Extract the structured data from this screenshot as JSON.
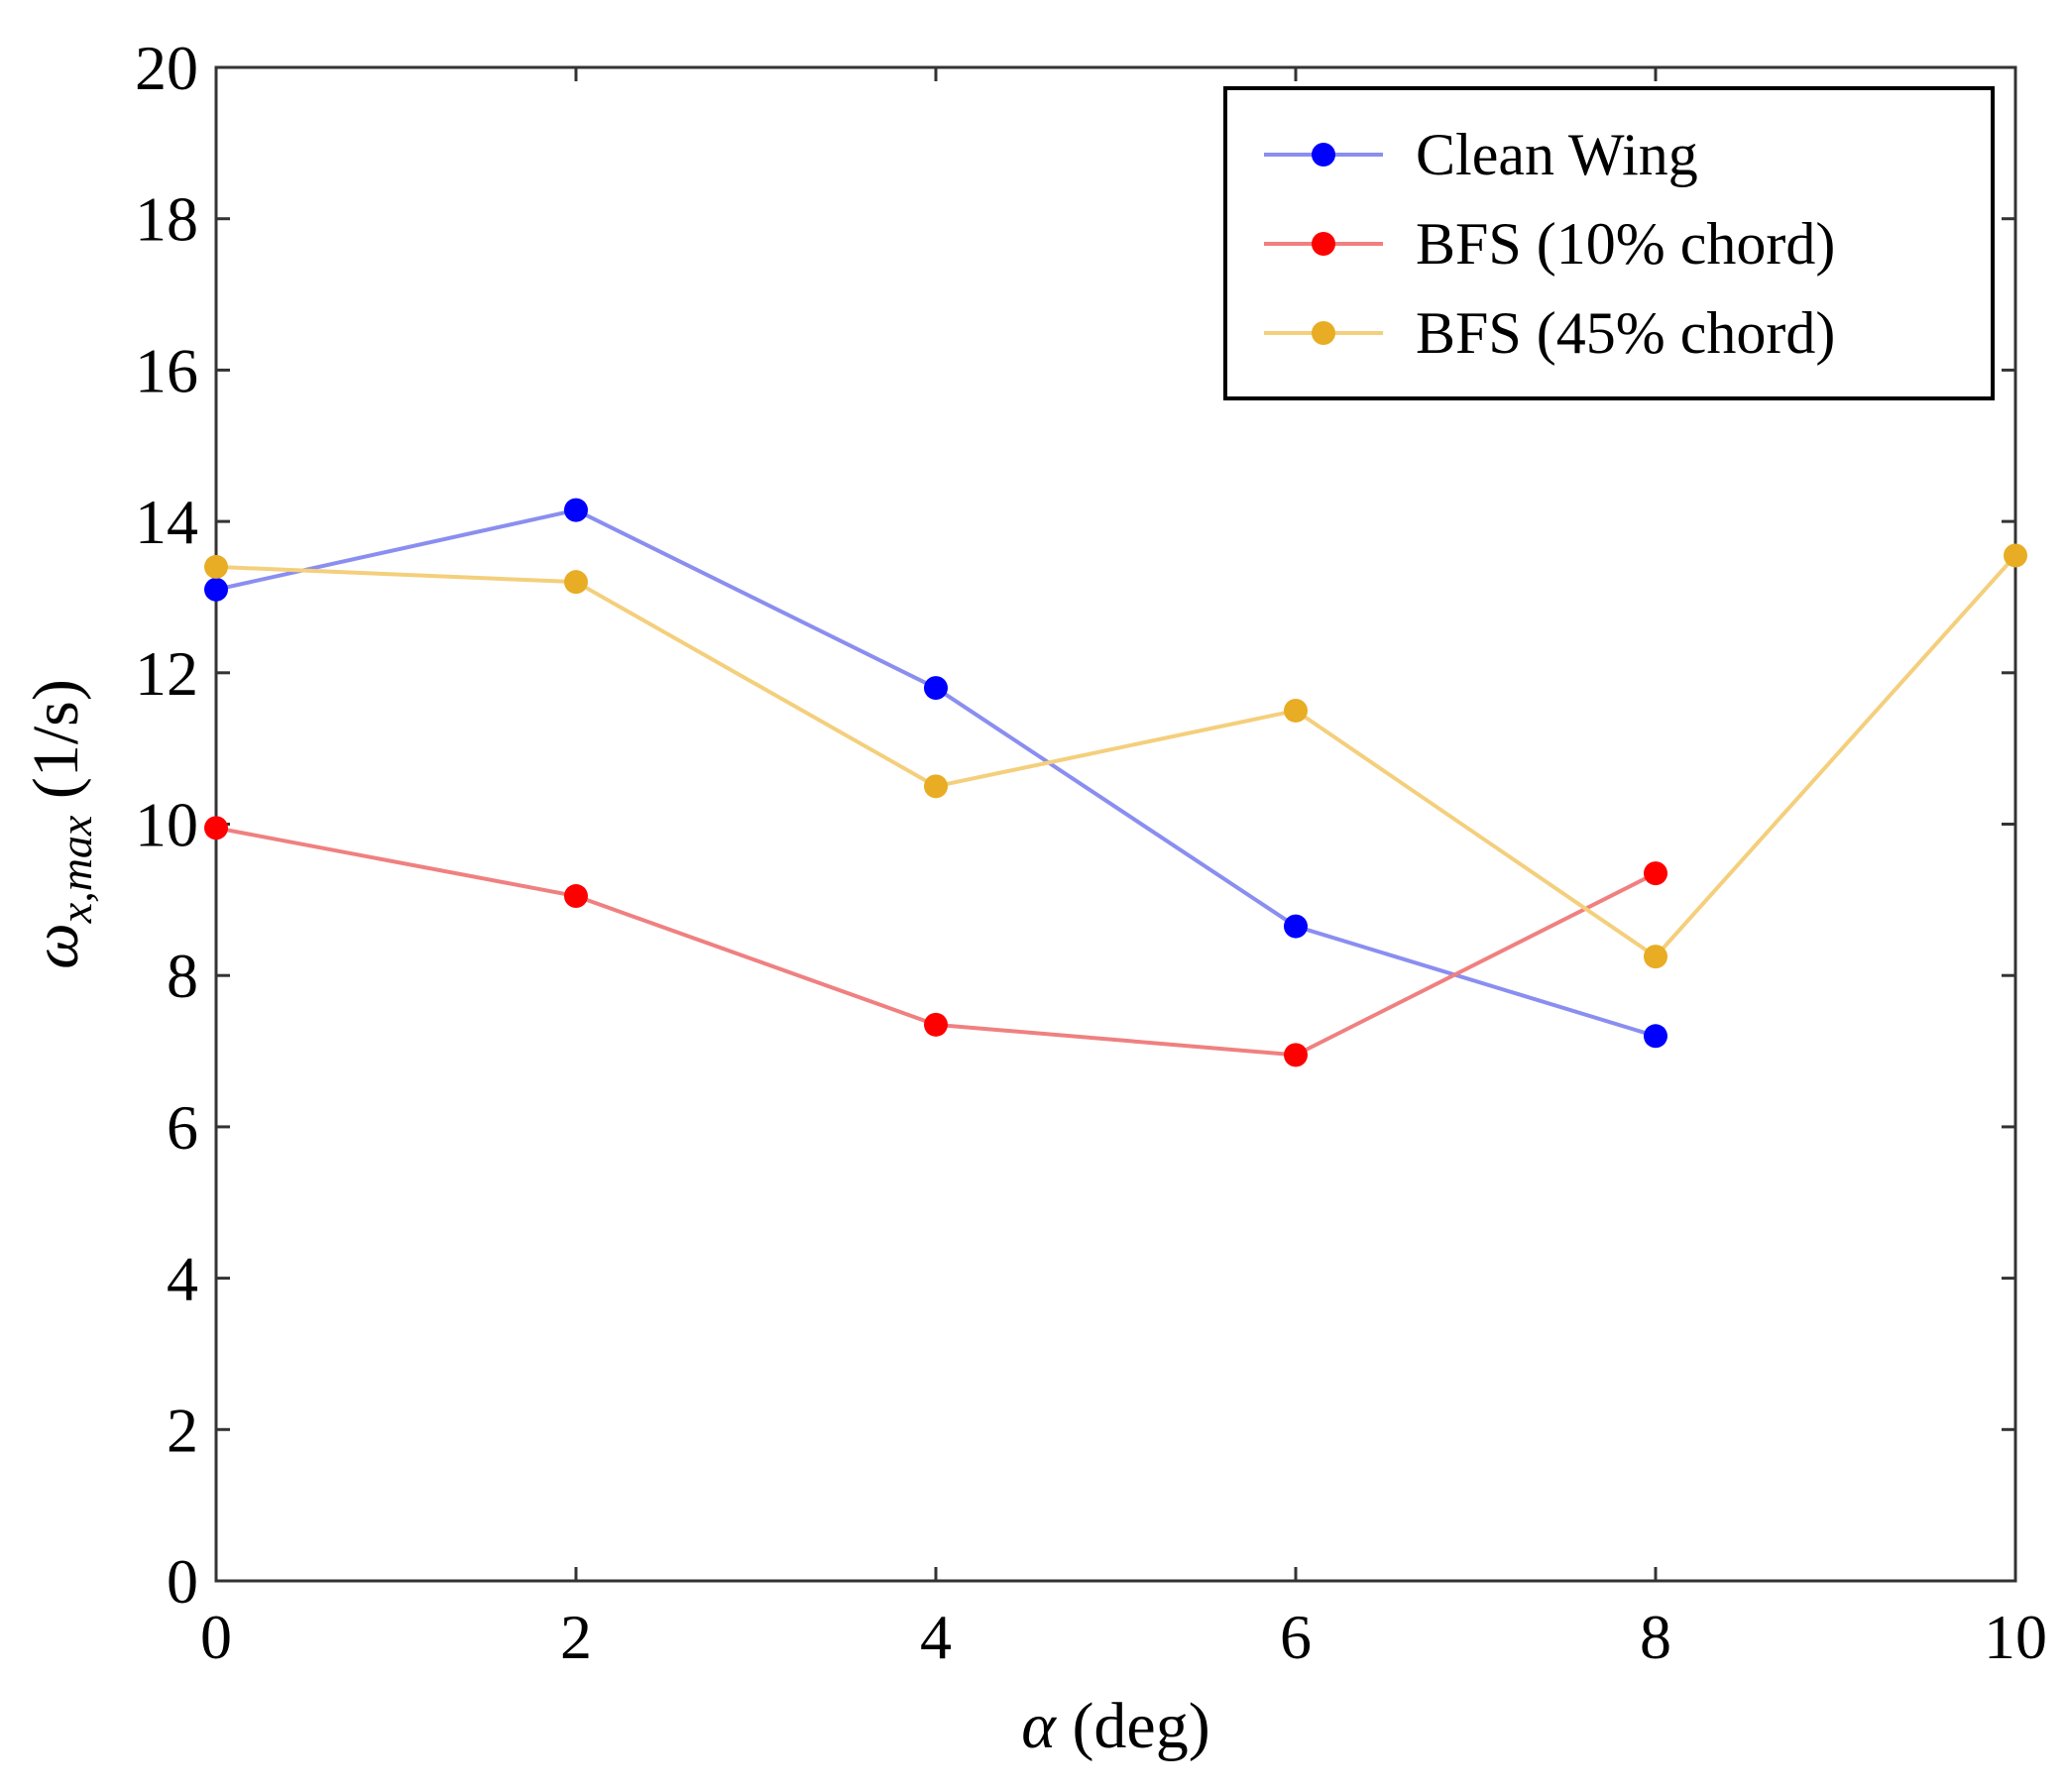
{
  "chart_data": {
    "type": "line",
    "title": "",
    "xlabel": {
      "symbol": "α",
      "unit": " (deg)"
    },
    "ylabel": {
      "symbol": "ω",
      "subscript": "x,max",
      "unit": " (1/s)"
    },
    "xlim": [
      0,
      10
    ],
    "ylim": [
      0,
      20
    ],
    "xticks": [
      0,
      2,
      4,
      6,
      8,
      10
    ],
    "yticks": [
      0,
      2,
      4,
      6,
      8,
      10,
      12,
      14,
      16,
      18,
      20
    ],
    "grid": false,
    "legend_position": "top-right",
    "series": [
      {
        "name": "Clean Wing",
        "color": "#0000ff",
        "line_color": "#8a8ef0",
        "x": [
          0,
          2,
          4,
          6,
          8
        ],
        "values": [
          13.1,
          14.15,
          11.8,
          8.65,
          7.2
        ]
      },
      {
        "name": "BFS (10% chord)",
        "color": "#ff0000",
        "line_color": "#f08080",
        "x": [
          0,
          2,
          4,
          6,
          8
        ],
        "values": [
          9.95,
          9.05,
          7.35,
          6.95,
          9.35
        ]
      },
      {
        "name": "BFS (45% chord)",
        "color": "#e8ad24",
        "line_color": "#f4cf7c",
        "x": [
          0,
          2,
          4,
          6,
          8,
          10
        ],
        "values": [
          13.4,
          13.2,
          10.5,
          11.5,
          8.25,
          13.55
        ]
      }
    ]
  }
}
